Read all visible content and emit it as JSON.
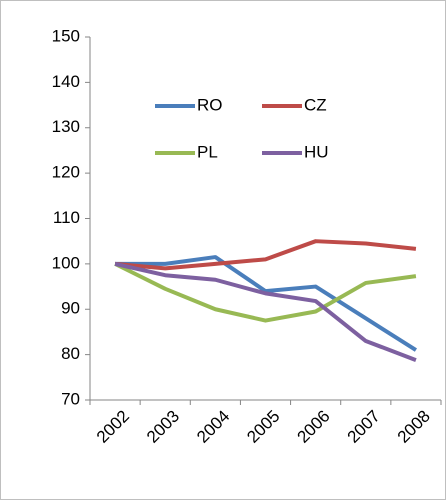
{
  "chart_data": {
    "type": "line",
    "categories": [
      "2002",
      "2003",
      "2004",
      "2005",
      "2006",
      "2007",
      "2008"
    ],
    "series": [
      {
        "name": "RO",
        "color": "#4a7ebb",
        "values": [
          100,
          100,
          101.5,
          94,
          95,
          88,
          81
        ]
      },
      {
        "name": "CZ",
        "color": "#be4b48",
        "values": [
          100,
          99,
          100,
          101,
          105,
          104.5,
          103.3
        ]
      },
      {
        "name": "PL",
        "color": "#98b954",
        "values": [
          100,
          94.5,
          90,
          87.5,
          89.5,
          95.8,
          97.3
        ]
      },
      {
        "name": "HU",
        "color": "#7d60a0",
        "values": [
          100,
          97.5,
          96.5,
          93.5,
          91.8,
          83,
          78.8
        ]
      }
    ],
    "ylim": [
      70,
      150
    ],
    "yticks": [
      70,
      80,
      90,
      100,
      110,
      120,
      130,
      140,
      150
    ],
    "grid": false,
    "legend": "upper center"
  }
}
